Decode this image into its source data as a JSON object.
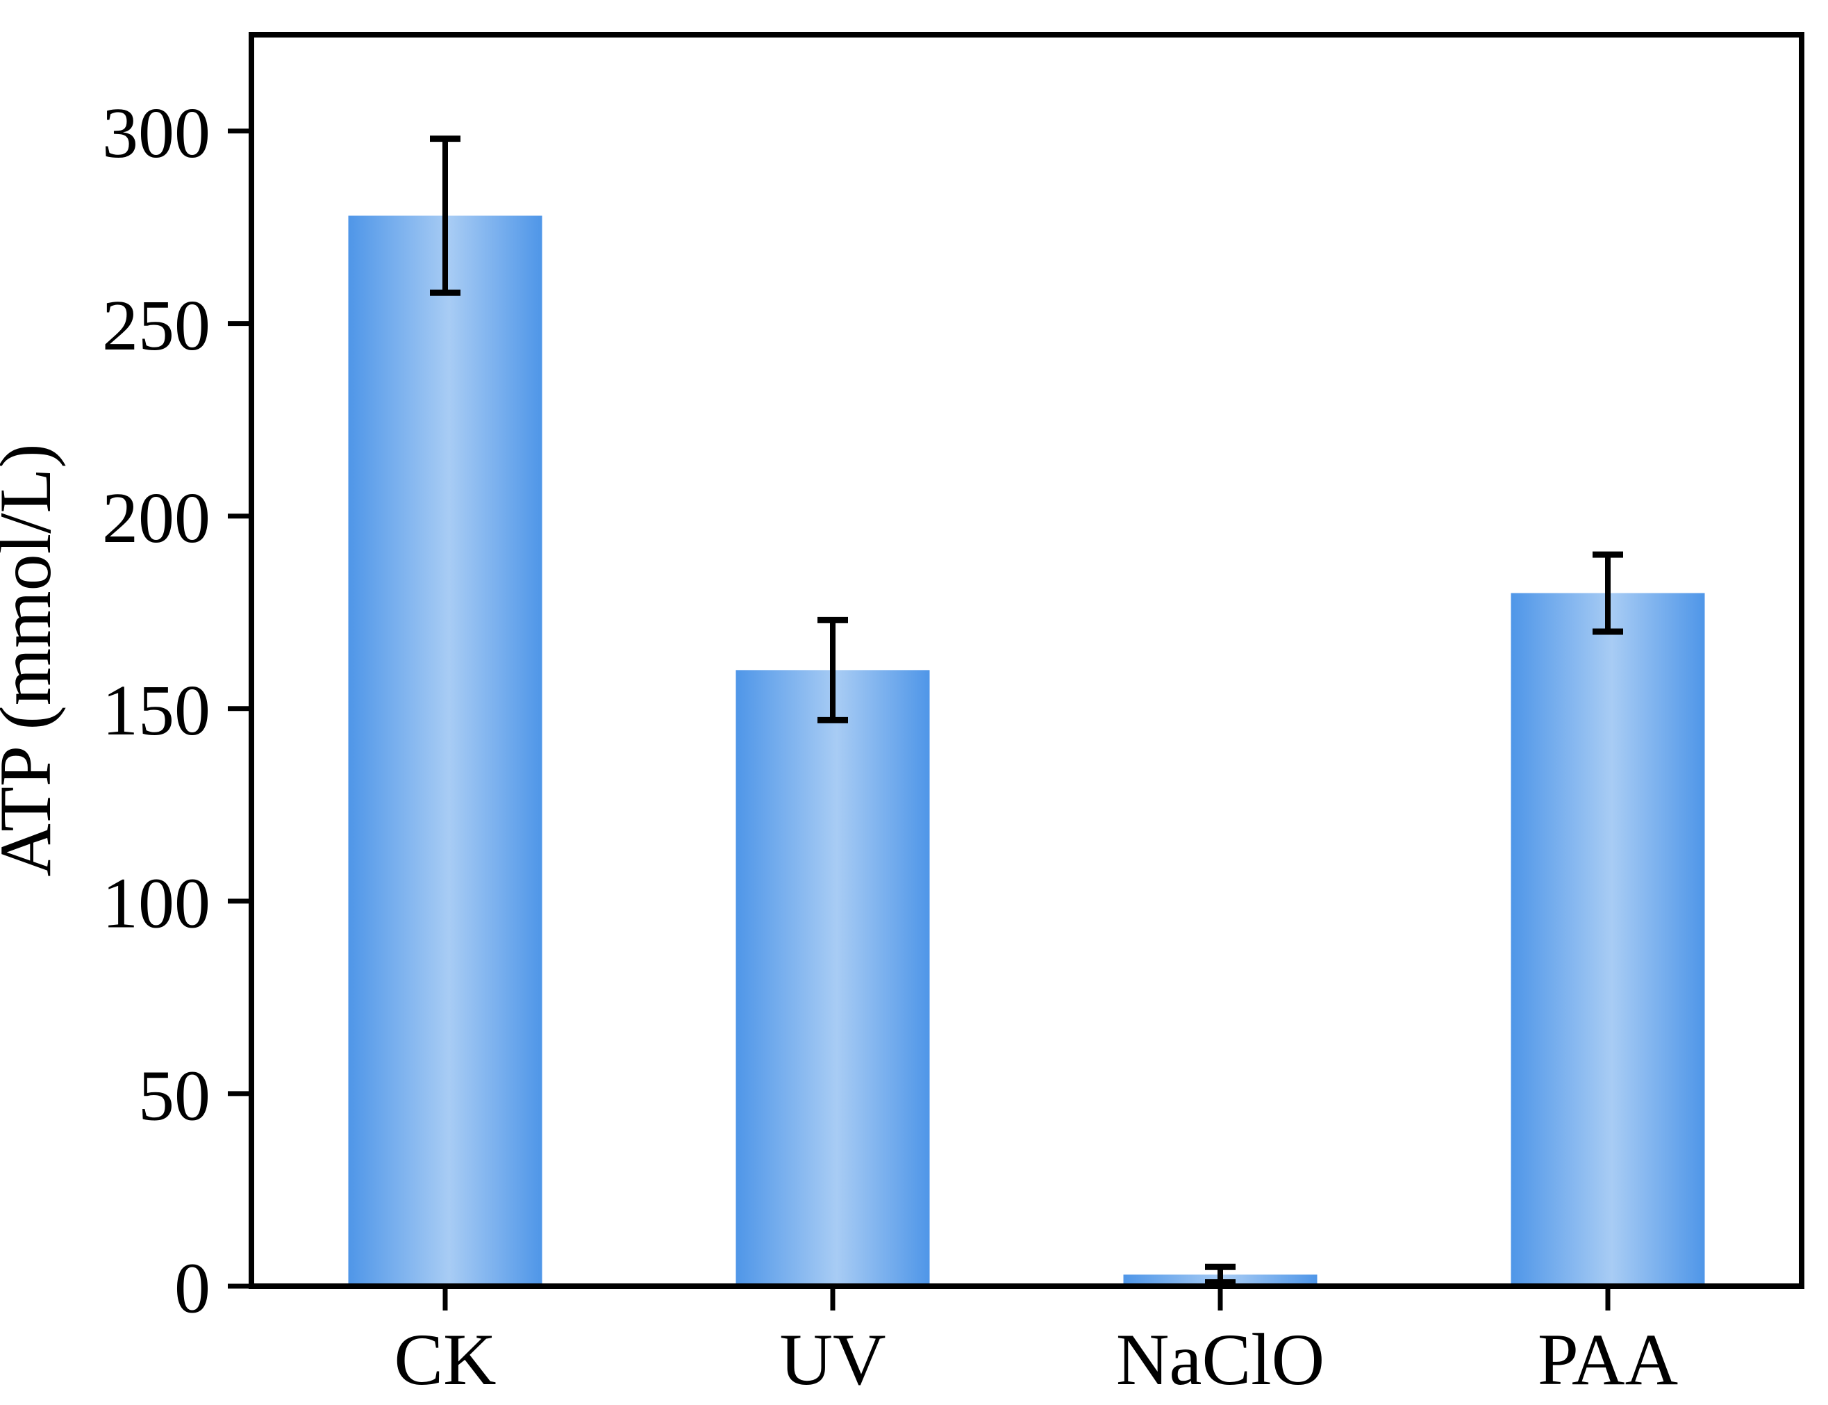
{
  "figure": {
    "background": "#ffffff"
  },
  "chart_data": {
    "type": "bar",
    "title": "",
    "xlabel": "",
    "ylabel": "ATP (mmol/L)",
    "categories": [
      "CK",
      "UV",
      "NaClO",
      "PAA"
    ],
    "values": [
      278,
      160,
      3,
      180
    ],
    "errors": [
      20,
      13,
      2,
      10
    ],
    "ylim": [
      0,
      325
    ],
    "yticks": [
      0,
      50,
      100,
      150,
      200,
      250,
      300
    ],
    "grid": false,
    "legend_position": "none",
    "frame": "full-box",
    "tick_direction": "out",
    "bar_width_ratio": 0.5,
    "colors": {
      "bar_edge_blue": "#4F96E8",
      "bar_center_blue": "#A8CCF4",
      "axis": "#000000",
      "error_bar": "#000000",
      "text": "#000000",
      "background": "#ffffff"
    }
  }
}
